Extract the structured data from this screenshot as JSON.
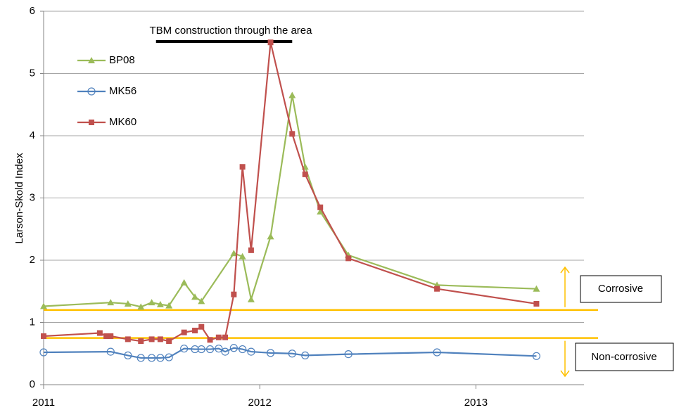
{
  "chart_data": {
    "type": "line",
    "y_label": "Larson-Skold Index",
    "xlim": [
      2011,
      2013.5
    ],
    "xticks": [
      2011,
      2012,
      2013
    ],
    "ylim": [
      0,
      6
    ],
    "yticks": [
      0,
      1,
      2,
      3,
      4,
      5,
      6
    ],
    "grid": true,
    "annotation": {
      "text": "TBM construction through the area",
      "start": 2011.52,
      "end": 2012.15
    },
    "thresholds": [
      {
        "value": 1.2,
        "label": "Corrosive"
      },
      {
        "value": 0.75,
        "label": "Non-corrosive"
      }
    ],
    "threshold_color": "#ffc000",
    "series": [
      {
        "name": "BP08",
        "color": "#9bbb59",
        "marker": "triangle",
        "x": [
          2011,
          2011.31,
          2011.39,
          2011.45,
          2011.5,
          2011.54,
          2011.58,
          2011.65,
          2011.7,
          2011.73,
          2011.88,
          2011.92,
          2011.96,
          2012.05,
          2012.15,
          2012.21,
          2012.28,
          2012.41,
          2012.82,
          2013.28
        ],
        "values": [
          1.26,
          1.32,
          1.3,
          1.25,
          1.32,
          1.29,
          1.27,
          1.64,
          1.41,
          1.34,
          2.11,
          2.06,
          1.37,
          2.38,
          4.65,
          3.5,
          2.78,
          2.08,
          1.6,
          1.54
        ]
      },
      {
        "name": "MK56",
        "color": "#4f81bd",
        "marker": "circle",
        "x": [
          2011,
          2011.31,
          2011.39,
          2011.45,
          2011.5,
          2011.54,
          2011.58,
          2011.65,
          2011.7,
          2011.73,
          2011.77,
          2011.81,
          2011.84,
          2011.88,
          2011.92,
          2011.96,
          2012.05,
          2012.15,
          2012.21,
          2012.41,
          2012.82,
          2013.28
        ],
        "values": [
          0.52,
          0.53,
          0.47,
          0.43,
          0.43,
          0.43,
          0.44,
          0.58,
          0.57,
          0.57,
          0.57,
          0.58,
          0.53,
          0.59,
          0.57,
          0.53,
          0.51,
          0.5,
          0.47,
          0.49,
          0.52,
          0.46
        ]
      },
      {
        "name": "MK60",
        "color": "#c0504d",
        "marker": "square",
        "x": [
          2011,
          2011.26,
          2011.29,
          2011.31,
          2011.39,
          2011.45,
          2011.5,
          2011.54,
          2011.58,
          2011.65,
          2011.7,
          2011.73,
          2011.77,
          2011.81,
          2011.84,
          2011.88,
          2011.92,
          2011.96,
          2012.05,
          2012.15,
          2012.21,
          2012.28,
          2012.41,
          2012.82,
          2013.28
        ],
        "values": [
          0.78,
          0.83,
          0.78,
          0.78,
          0.73,
          0.7,
          0.73,
          0.73,
          0.7,
          0.84,
          0.87,
          0.93,
          0.72,
          0.76,
          0.76,
          1.45,
          3.5,
          2.16,
          5.5,
          4.03,
          3.38,
          2.85,
          2.03,
          1.54,
          1.3
        ]
      }
    ]
  }
}
